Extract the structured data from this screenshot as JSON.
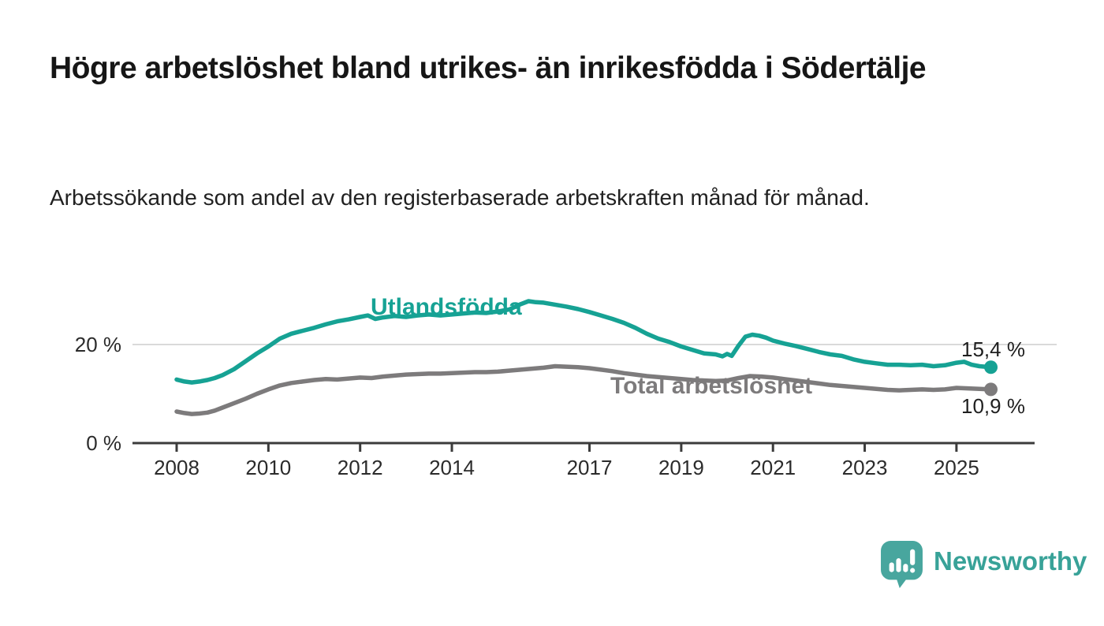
{
  "header": {
    "title": "Högre arbetslöshet bland utrikes- än inrikesfödda i Södertälje",
    "subtitle": "Arbetssökande som andel av den registerbaserade arbetskraften månad för månad."
  },
  "branding": {
    "logo_text": "Newsworthy",
    "logo_icon": "bar-chart-speech-bubble-icon",
    "wordmark_color": "#38a298",
    "icon_color": "#48a69e"
  },
  "chart_data": {
    "type": "line",
    "title": "Högre arbetslöshet bland utrikes- än inrikesfödda i Södertälje",
    "subtitle": "Arbetssökande som andel av den registerbaserade arbetskraften månad för månad.",
    "xlabel": "",
    "ylabel": "",
    "x_range": [
      2008,
      2025.95
    ],
    "ylim": [
      0,
      31
    ],
    "grid": "single horizontal gridline at 20",
    "gridlines": [
      20
    ],
    "legend_position": "labels inline next to lines",
    "y_ticks": [
      {
        "value": 0,
        "label": "0 %"
      },
      {
        "value": 20,
        "label": "20 %"
      }
    ],
    "x_ticks": [
      {
        "year": 2008,
        "label": "2008"
      },
      {
        "year": 2010,
        "label": "2010"
      },
      {
        "year": 2012,
        "label": "2012"
      },
      {
        "year": 2014,
        "label": "2014"
      },
      {
        "year": 2017,
        "label": "2017"
      },
      {
        "year": 2019,
        "label": "2019"
      },
      {
        "year": 2021,
        "label": "2021"
      },
      {
        "year": 2023,
        "label": "2023"
      },
      {
        "year": 2025,
        "label": "2025"
      }
    ],
    "series": [
      {
        "name": "Utlandsfödda",
        "color": "#16a294",
        "end_label": "15,4 %",
        "end_value": 15.4,
        "points": [
          [
            2008.0,
            12.9
          ],
          [
            2008.17,
            12.5
          ],
          [
            2008.33,
            12.3
          ],
          [
            2008.5,
            12.5
          ],
          [
            2008.67,
            12.8
          ],
          [
            2008.83,
            13.2
          ],
          [
            2009.0,
            13.8
          ],
          [
            2009.25,
            15.0
          ],
          [
            2009.5,
            16.6
          ],
          [
            2009.75,
            18.2
          ],
          [
            2010.0,
            19.6
          ],
          [
            2010.25,
            21.2
          ],
          [
            2010.5,
            22.2
          ],
          [
            2010.75,
            22.8
          ],
          [
            2011.0,
            23.4
          ],
          [
            2011.25,
            24.1
          ],
          [
            2011.5,
            24.7
          ],
          [
            2011.75,
            25.1
          ],
          [
            2012.0,
            25.6
          ],
          [
            2012.17,
            25.9
          ],
          [
            2012.33,
            25.2
          ],
          [
            2012.5,
            25.5
          ],
          [
            2012.75,
            25.8
          ],
          [
            2013.0,
            25.6
          ],
          [
            2013.25,
            25.9
          ],
          [
            2013.5,
            26.1
          ],
          [
            2013.75,
            25.9
          ],
          [
            2014.0,
            26.1
          ],
          [
            2014.25,
            26.3
          ],
          [
            2014.5,
            26.5
          ],
          [
            2014.75,
            26.4
          ],
          [
            2015.0,
            26.7
          ],
          [
            2015.25,
            27.1
          ],
          [
            2015.5,
            28.2
          ],
          [
            2015.67,
            28.8
          ],
          [
            2015.83,
            28.6
          ],
          [
            2016.0,
            28.5
          ],
          [
            2016.25,
            28.1
          ],
          [
            2016.5,
            27.7
          ],
          [
            2016.75,
            27.2
          ],
          [
            2017.0,
            26.6
          ],
          [
            2017.25,
            25.9
          ],
          [
            2017.5,
            25.2
          ],
          [
            2017.75,
            24.4
          ],
          [
            2018.0,
            23.4
          ],
          [
            2018.25,
            22.2
          ],
          [
            2018.5,
            21.2
          ],
          [
            2018.75,
            20.5
          ],
          [
            2019.0,
            19.6
          ],
          [
            2019.25,
            18.9
          ],
          [
            2019.5,
            18.2
          ],
          [
            2019.75,
            18.0
          ],
          [
            2019.9,
            17.6
          ],
          [
            2020.0,
            18.1
          ],
          [
            2020.1,
            17.7
          ],
          [
            2020.25,
            19.8
          ],
          [
            2020.4,
            21.6
          ],
          [
            2020.55,
            22.0
          ],
          [
            2020.7,
            21.8
          ],
          [
            2020.85,
            21.4
          ],
          [
            2021.0,
            20.8
          ],
          [
            2021.25,
            20.2
          ],
          [
            2021.5,
            19.7
          ],
          [
            2021.75,
            19.1
          ],
          [
            2022.0,
            18.5
          ],
          [
            2022.25,
            18.0
          ],
          [
            2022.5,
            17.7
          ],
          [
            2022.75,
            17.0
          ],
          [
            2023.0,
            16.5
          ],
          [
            2023.25,
            16.2
          ],
          [
            2023.5,
            15.9
          ],
          [
            2023.75,
            15.9
          ],
          [
            2024.0,
            15.8
          ],
          [
            2024.25,
            15.9
          ],
          [
            2024.5,
            15.6
          ],
          [
            2024.75,
            15.8
          ],
          [
            2025.0,
            16.3
          ],
          [
            2025.17,
            16.5
          ],
          [
            2025.33,
            15.9
          ],
          [
            2025.5,
            15.6
          ],
          [
            2025.75,
            15.4
          ]
        ]
      },
      {
        "name": "Total arbetslöshet",
        "color": "#7d7b7c",
        "end_label": "10,9 %",
        "end_value": 10.9,
        "points": [
          [
            2008.0,
            6.4
          ],
          [
            2008.17,
            6.1
          ],
          [
            2008.33,
            5.9
          ],
          [
            2008.5,
            6.0
          ],
          [
            2008.67,
            6.2
          ],
          [
            2008.83,
            6.6
          ],
          [
            2009.0,
            7.2
          ],
          [
            2009.25,
            8.1
          ],
          [
            2009.5,
            9.0
          ],
          [
            2009.75,
            10.0
          ],
          [
            2010.0,
            10.9
          ],
          [
            2010.25,
            11.7
          ],
          [
            2010.5,
            12.2
          ],
          [
            2010.75,
            12.5
          ],
          [
            2011.0,
            12.8
          ],
          [
            2011.25,
            13.0
          ],
          [
            2011.5,
            12.9
          ],
          [
            2011.75,
            13.1
          ],
          [
            2012.0,
            13.3
          ],
          [
            2012.25,
            13.2
          ],
          [
            2012.5,
            13.5
          ],
          [
            2012.75,
            13.7
          ],
          [
            2013.0,
            13.9
          ],
          [
            2013.25,
            14.0
          ],
          [
            2013.5,
            14.1
          ],
          [
            2013.75,
            14.1
          ],
          [
            2014.0,
            14.2
          ],
          [
            2014.25,
            14.3
          ],
          [
            2014.5,
            14.4
          ],
          [
            2014.75,
            14.4
          ],
          [
            2015.0,
            14.5
          ],
          [
            2015.25,
            14.7
          ],
          [
            2015.5,
            14.9
          ],
          [
            2015.75,
            15.1
          ],
          [
            2016.0,
            15.3
          ],
          [
            2016.25,
            15.6
          ],
          [
            2016.5,
            15.5
          ],
          [
            2016.75,
            15.4
          ],
          [
            2017.0,
            15.2
          ],
          [
            2017.25,
            14.9
          ],
          [
            2017.5,
            14.6
          ],
          [
            2017.75,
            14.2
          ],
          [
            2018.0,
            13.9
          ],
          [
            2018.25,
            13.6
          ],
          [
            2018.5,
            13.4
          ],
          [
            2018.75,
            13.2
          ],
          [
            2019.0,
            13.0
          ],
          [
            2019.25,
            12.8
          ],
          [
            2019.5,
            12.7
          ],
          [
            2019.75,
            12.6
          ],
          [
            2020.0,
            12.7
          ],
          [
            2020.25,
            13.2
          ],
          [
            2020.5,
            13.6
          ],
          [
            2020.75,
            13.5
          ],
          [
            2021.0,
            13.3
          ],
          [
            2021.25,
            13.0
          ],
          [
            2021.5,
            12.7
          ],
          [
            2021.75,
            12.4
          ],
          [
            2022.0,
            12.1
          ],
          [
            2022.25,
            11.8
          ],
          [
            2022.5,
            11.6
          ],
          [
            2022.75,
            11.4
          ],
          [
            2023.0,
            11.2
          ],
          [
            2023.25,
            11.0
          ],
          [
            2023.5,
            10.8
          ],
          [
            2023.75,
            10.7
          ],
          [
            2024.0,
            10.8
          ],
          [
            2024.25,
            10.9
          ],
          [
            2024.5,
            10.8
          ],
          [
            2024.75,
            10.9
          ],
          [
            2025.0,
            11.2
          ],
          [
            2025.25,
            11.1
          ],
          [
            2025.5,
            11.0
          ],
          [
            2025.75,
            10.9
          ]
        ]
      }
    ]
  }
}
